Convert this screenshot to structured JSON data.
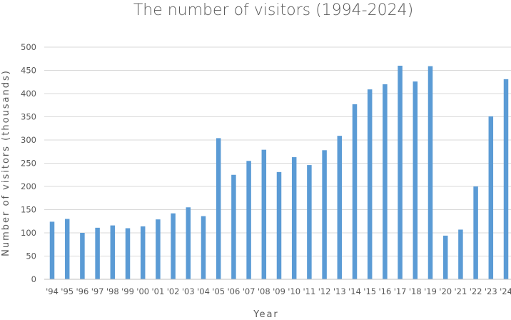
{
  "chart_data": {
    "type": "bar",
    "title": "The number of visitors (1994-2024)",
    "xlabel": "Year",
    "ylabel": "Number of visitors (thousands)",
    "ylim": [
      0,
      500
    ],
    "yticks": [
      "0",
      "50",
      "100",
      "150",
      "200",
      "250",
      "300",
      "350",
      "400",
      "450",
      "500"
    ],
    "grid": true,
    "legend": "none",
    "bar_color": "#5b9bd5",
    "categories": [
      "'94",
      "'95",
      "'96",
      "'97",
      "'98",
      "'99",
      "'00",
      "'01",
      "'02",
      "'03",
      "'04",
      "'05",
      "'06",
      "'07",
      "'08",
      "'09",
      "'10",
      "'11",
      "'12",
      "'13",
      "'14",
      "'15",
      "'16",
      "'17",
      "'18",
      "'19",
      "'20",
      "'21",
      "'22",
      "'23",
      "'24"
    ],
    "values": [
      124,
      130,
      100,
      111,
      116,
      110,
      114,
      129,
      142,
      155,
      136,
      304,
      225,
      255,
      279,
      231,
      263,
      246,
      278,
      309,
      377,
      409,
      420,
      460,
      426,
      459,
      94,
      107,
      200,
      351,
      431
    ]
  }
}
